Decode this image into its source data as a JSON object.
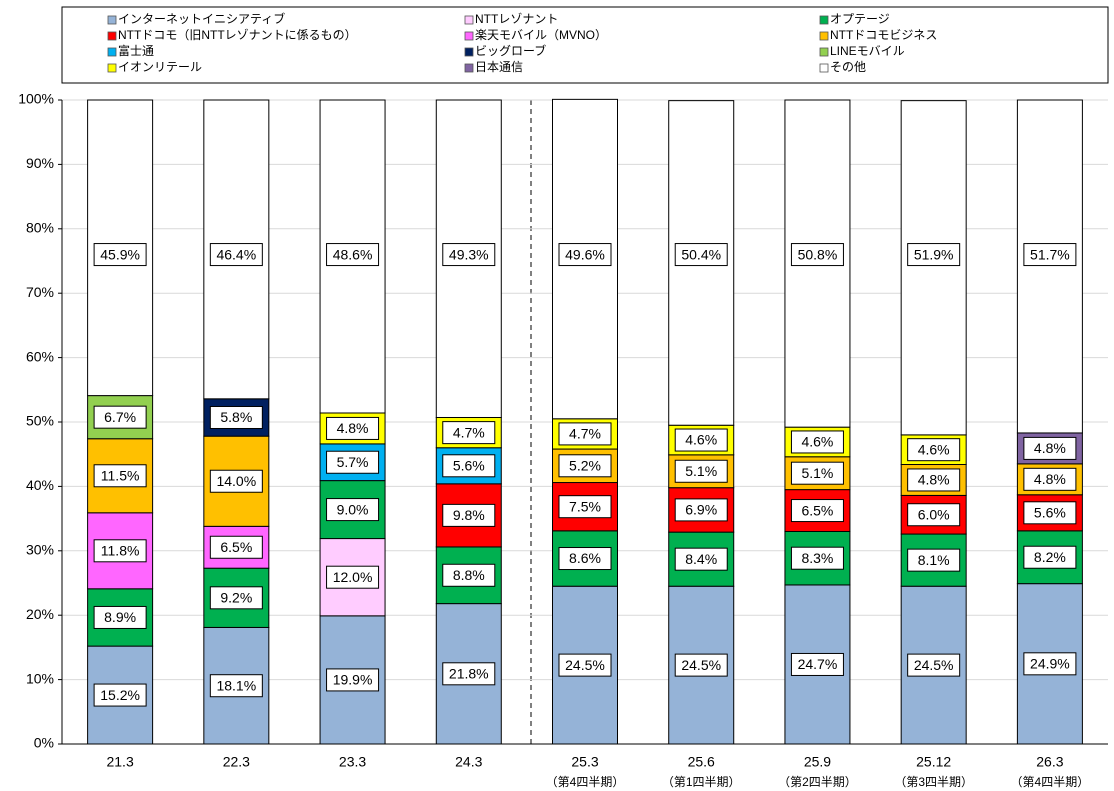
{
  "chart_data": {
    "type": "stacked_bar",
    "categories": [
      "21.3",
      "22.3",
      "23.3",
      "24.3",
      "25.3",
      "25.6",
      "25.9",
      "25.12",
      "26.3"
    ],
    "category_sublabels": [
      null,
      null,
      null,
      null,
      "（第4四半期）",
      "（第1四半期）",
      "（第2四半期）",
      "（第3四半期）",
      "（第4四半期）"
    ],
    "ylim": [
      0,
      100
    ],
    "yticks": [
      {
        "value": 0,
        "label": "0%"
      },
      {
        "value": 10,
        "label": "10%"
      },
      {
        "value": 20,
        "label": "20%"
      },
      {
        "value": 30,
        "label": "30%"
      },
      {
        "value": 40,
        "label": "40%"
      },
      {
        "value": 50,
        "label": "50%"
      },
      {
        "value": 60,
        "label": "60%"
      },
      {
        "value": 70,
        "label": "70%"
      },
      {
        "value": 80,
        "label": "80%"
      },
      {
        "value": 90,
        "label": "90%"
      },
      {
        "value": 100,
        "label": "100%"
      }
    ],
    "grid": true,
    "legend": "top",
    "series": [
      {
        "name": "インターネットイニシアティブ",
        "color": "#95b3d7",
        "values": [
          15.2,
          18.1,
          19.9,
          21.8,
          24.5,
          24.5,
          24.7,
          24.5,
          24.9
        ],
        "value_labels": [
          "15.2%",
          "18.1%",
          "19.9%",
          "21.8%",
          "24.5%",
          "24.5%",
          "24.7%",
          "24.5%",
          "24.9%"
        ]
      },
      {
        "name": "NTTレゾナント",
        "color": "#ffccff",
        "values": [
          null,
          null,
          12.0,
          null,
          null,
          null,
          null,
          null,
          null
        ],
        "value_labels": [
          null,
          null,
          "12.0%",
          null,
          null,
          null,
          null,
          null,
          null
        ]
      },
      {
        "name": "オプテージ",
        "color": "#00b050",
        "values": [
          8.9,
          9.2,
          9.0,
          8.8,
          8.6,
          8.4,
          8.3,
          8.1,
          8.2
        ],
        "value_labels": [
          "8.9%",
          "9.2%",
          "9.0%",
          "8.8%",
          "8.6%",
          "8.4%",
          "8.3%",
          "8.1%",
          "8.2%"
        ]
      },
      {
        "name": "NTTドコモ（旧NTTレゾナントに係るもの）",
        "color": "#ff0000",
        "values": [
          null,
          null,
          null,
          9.8,
          7.5,
          6.9,
          6.5,
          6.0,
          5.6
        ],
        "value_labels": [
          null,
          null,
          null,
          "9.8%",
          "7.5%",
          "6.9%",
          "6.5%",
          "6.0%",
          "5.6%"
        ]
      },
      {
        "name": "楽天モバイル（MVNO）",
        "color": "#ff66ff",
        "values": [
          11.8,
          6.5,
          null,
          null,
          null,
          null,
          null,
          null,
          null
        ],
        "value_labels": [
          "11.8%",
          "6.5%",
          null,
          null,
          null,
          null,
          null,
          null,
          null
        ]
      },
      {
        "name": "NTTドコモビジネス",
        "color": "#ffc000",
        "values": [
          11.5,
          14.0,
          null,
          null,
          5.2,
          5.1,
          5.1,
          4.8,
          4.8
        ],
        "value_labels": [
          "11.5%",
          "14.0%",
          null,
          null,
          "5.2%",
          "5.1%",
          "5.1%",
          "4.8%",
          "4.8%"
        ]
      },
      {
        "name": "富士通",
        "color": "#00b0f0",
        "values": [
          null,
          null,
          5.7,
          5.6,
          null,
          null,
          null,
          null,
          null
        ],
        "value_labels": [
          null,
          null,
          "5.7%",
          "5.6%",
          null,
          null,
          null,
          null,
          null
        ]
      },
      {
        "name": "ビッグローブ",
        "color": "#002060",
        "values": [
          null,
          5.8,
          null,
          null,
          null,
          null,
          null,
          null,
          null
        ],
        "value_labels": [
          null,
          "5.8%",
          null,
          null,
          null,
          null,
          null,
          null,
          null
        ]
      },
      {
        "name": "LINEモバイル",
        "color": "#92d050",
        "values": [
          6.7,
          null,
          null,
          null,
          null,
          null,
          null,
          null,
          null
        ],
        "value_labels": [
          "6.7%",
          null,
          null,
          null,
          null,
          null,
          null,
          null,
          null
        ]
      },
      {
        "name": "イオンリテール",
        "color": "#ffff00",
        "values": [
          null,
          null,
          4.8,
          4.7,
          4.7,
          4.6,
          4.6,
          4.6,
          null
        ],
        "value_labels": [
          null,
          null,
          "4.8%",
          "4.7%",
          "4.7%",
          "4.6%",
          "4.6%",
          "4.6%",
          null
        ]
      },
      {
        "name": "日本通信",
        "color": "#8064a2",
        "values": [
          null,
          null,
          null,
          null,
          null,
          null,
          null,
          null,
          4.8
        ],
        "value_labels": [
          null,
          null,
          null,
          null,
          null,
          null,
          null,
          null,
          "4.8%"
        ]
      },
      {
        "name": "その他",
        "color": "#ffffff",
        "values": [
          45.9,
          46.4,
          48.6,
          49.3,
          49.6,
          50.4,
          50.8,
          51.9,
          51.7
        ],
        "value_labels": [
          "45.9%",
          "46.4%",
          "48.6%",
          "49.3%",
          "49.6%",
          "50.4%",
          "50.8%",
          "51.9%",
          "51.7%"
        ]
      }
    ]
  }
}
